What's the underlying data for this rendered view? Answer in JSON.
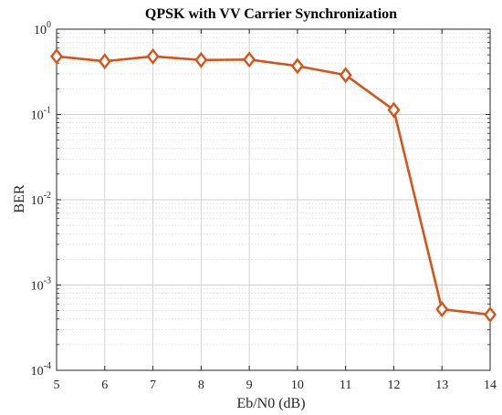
{
  "chart_data": {
    "type": "line",
    "title": "QPSK with VV Carrier Synchronization",
    "xlabel": "Eb/N0 (dB)",
    "ylabel": "BER",
    "x": [
      5,
      6,
      7,
      8,
      9,
      10,
      11,
      12,
      13,
      14
    ],
    "xlim": [
      5,
      14
    ],
    "yscale": "log",
    "ylim": [
      0.0001,
      1
    ],
    "grid": true,
    "x_ticks": [
      "5",
      "6",
      "7",
      "8",
      "9",
      "10",
      "11",
      "12",
      "13",
      "14"
    ],
    "y_ticks": [
      {
        "base": "10",
        "exp": "0"
      },
      {
        "base": "10",
        "exp": "-1"
      },
      {
        "base": "10",
        "exp": "-2"
      },
      {
        "base": "10",
        "exp": "-3"
      },
      {
        "base": "10",
        "exp": "-4"
      }
    ],
    "series": [
      {
        "values": [
          0.48,
          0.42,
          0.48,
          0.435,
          0.44,
          0.37,
          0.29,
          0.113,
          0.00052,
          0.00045
        ],
        "color": "#D95319",
        "marker": "diamond"
      }
    ]
  }
}
